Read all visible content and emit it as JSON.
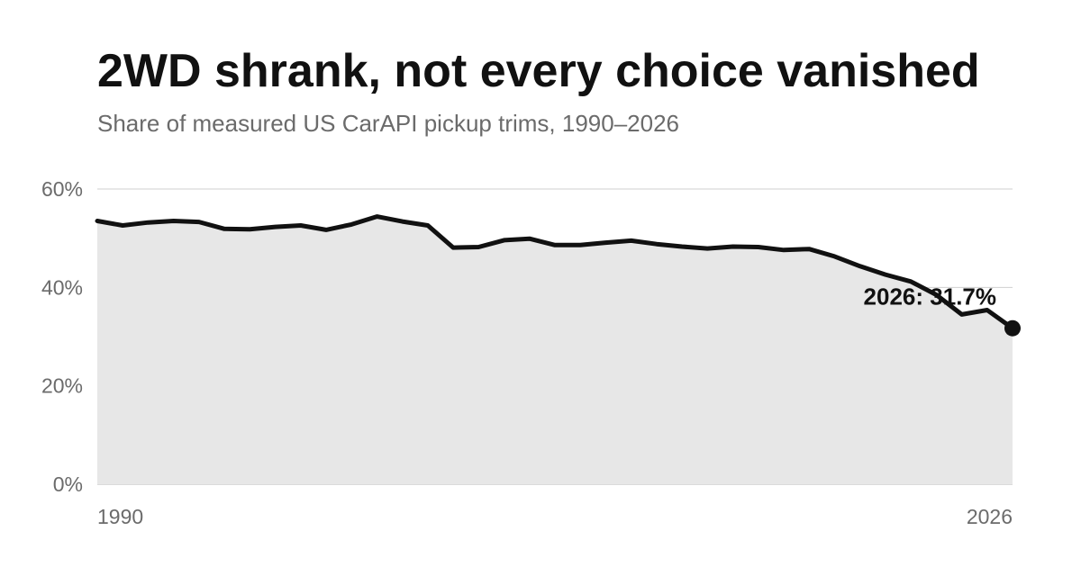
{
  "chart_data": {
    "type": "area",
    "title": "2WD shrank, not every choice vanished",
    "subtitle": "Share of measured US CarAPI pickup trims, 1990–2026",
    "xlabel": "",
    "ylabel": "",
    "x": [
      1990,
      1991,
      1992,
      1993,
      1994,
      1995,
      1996,
      1997,
      1998,
      1999,
      2000,
      2001,
      2002,
      2003,
      2004,
      2005,
      2006,
      2007,
      2008,
      2009,
      2010,
      2011,
      2012,
      2013,
      2014,
      2015,
      2016,
      2017,
      2018,
      2019,
      2020,
      2021,
      2022,
      2023,
      2024,
      2025,
      2026
    ],
    "values": [
      53.5,
      52.6,
      53.2,
      53.5,
      53.3,
      51.9,
      51.8,
      52.3,
      52.6,
      51.7,
      52.8,
      54.4,
      53.4,
      52.6,
      48.1,
      48.2,
      49.6,
      49.9,
      48.6,
      48.6,
      49.1,
      49.5,
      48.8,
      48.3,
      47.9,
      48.3,
      48.2,
      47.6,
      47.8,
      46.3,
      44.3,
      42.6,
      41.2,
      38.5,
      34.5,
      35.4,
      31.7
    ],
    "ylim": [
      0,
      60
    ],
    "xlim": [
      1990,
      2026
    ],
    "y_ticks": [
      {
        "value": 0,
        "label": "0%"
      },
      {
        "value": 20,
        "label": "20%"
      },
      {
        "value": 40,
        "label": "40%"
      },
      {
        "value": 60,
        "label": "60%"
      }
    ],
    "x_ticks": [
      {
        "value": 1990,
        "label": "1990"
      },
      {
        "value": 2026,
        "label": "2026"
      }
    ],
    "grid": true,
    "annotation": {
      "x": 2026,
      "y": 31.7,
      "label": "2026: 31.7%"
    },
    "colors": {
      "line": "#111111",
      "fill": "#e7e7e7",
      "grid": "#cfcfcf",
      "axis": "#cfcfcf"
    }
  }
}
